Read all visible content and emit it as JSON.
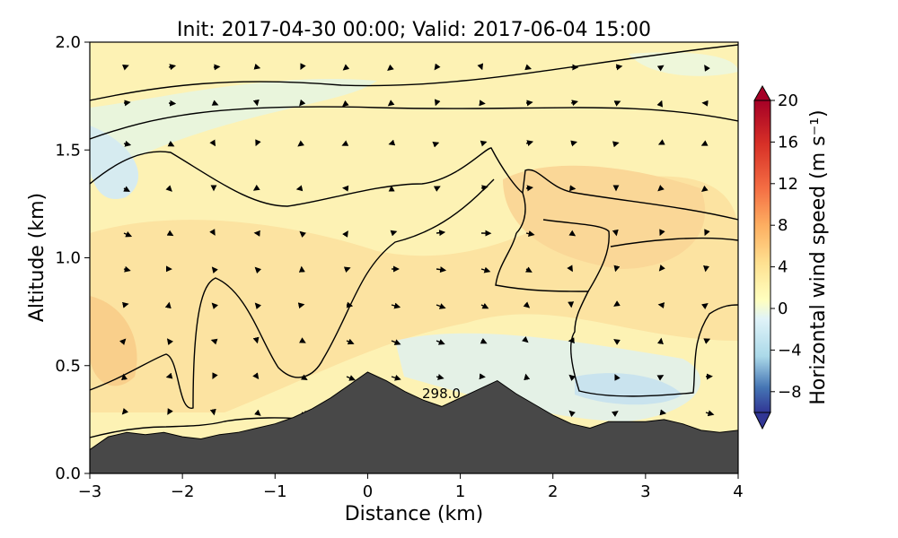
{
  "chart_data": {
    "type": "contourf",
    "title": "Init: 2017-04-30 00:00; Valid: 2017-06-04 15:00",
    "xlabel": "Distance (km)",
    "ylabel": "Altitude (km)",
    "xlim": [
      -3,
      4
    ],
    "ylim": [
      0.0,
      2.0
    ],
    "xticks": [
      -3,
      -2,
      -1,
      0,
      1,
      2,
      3,
      4
    ],
    "xtick_labels": [
      "−3",
      "−2",
      "−1",
      "0",
      "1",
      "2",
      "3",
      "4"
    ],
    "yticks": [
      0.0,
      0.5,
      1.0,
      1.5,
      2.0
    ],
    "ytick_labels": [
      "0.0",
      "0.5",
      "1.0",
      "1.5",
      "2.0"
    ],
    "colorbar": {
      "label": "Horizontal wind speed (m s⁻¹)",
      "range": [
        -10,
        20
      ],
      "ticks": [
        20,
        16,
        12,
        8,
        4,
        0,
        -4,
        -8
      ],
      "tick_labels": [
        "20",
        "16",
        "12",
        "8",
        "4",
        "0",
        "−4",
        "−8"
      ],
      "colormap": "RdYlBu_r",
      "extend": "both"
    },
    "contour_label": "298.0",
    "terrain": {
      "x": [
        -3.0,
        -2.8,
        -2.6,
        -2.4,
        -2.2,
        -2.0,
        -1.8,
        -1.6,
        -1.4,
        -1.2,
        -1.0,
        -0.8,
        -0.6,
        -0.4,
        -0.2,
        0.0,
        0.2,
        0.4,
        0.6,
        0.8,
        1.0,
        1.2,
        1.4,
        1.6,
        1.8,
        2.0,
        2.2,
        2.4,
        2.6,
        2.8,
        3.0,
        3.2,
        3.4,
        3.6,
        3.8,
        4.0
      ],
      "y": [
        0.11,
        0.17,
        0.19,
        0.18,
        0.19,
        0.17,
        0.16,
        0.18,
        0.19,
        0.21,
        0.23,
        0.26,
        0.3,
        0.35,
        0.41,
        0.47,
        0.43,
        0.38,
        0.34,
        0.31,
        0.35,
        0.39,
        0.43,
        0.37,
        0.32,
        0.27,
        0.23,
        0.21,
        0.24,
        0.24,
        0.24,
        0.25,
        0.23,
        0.2,
        0.19,
        0.2
      ]
    },
    "background_colors": [
      "#fdf2b4",
      "#fce3a1",
      "#ecf6d6",
      "#d6ebf0"
    ]
  }
}
